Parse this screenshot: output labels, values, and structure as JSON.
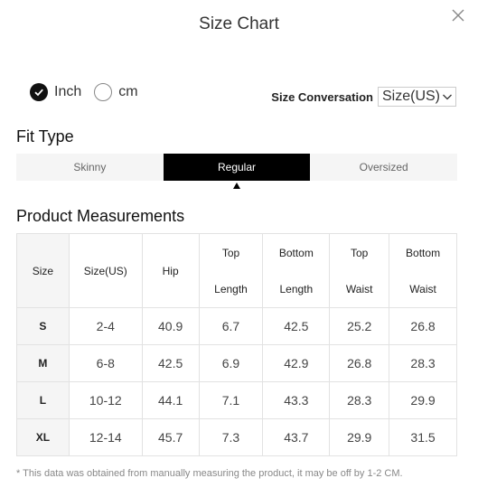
{
  "dialog": {
    "title": "Size Chart"
  },
  "units": {
    "options": [
      {
        "label": "Inch",
        "selected": true
      },
      {
        "label": "cm",
        "selected": false
      }
    ]
  },
  "conversion": {
    "label": "Size Conversation",
    "selected": "Size(US)"
  },
  "fit_type": {
    "title": "Fit Type",
    "tabs": [
      {
        "label": "Skinny",
        "active": false
      },
      {
        "label": "Regular",
        "active": true
      },
      {
        "label": "Oversized",
        "active": false
      }
    ]
  },
  "measurements": {
    "title": "Product Measurements",
    "headers": [
      {
        "line1": "Size",
        "line2": ""
      },
      {
        "line1": "Size(US)",
        "line2": ""
      },
      {
        "line1": "Hip",
        "line2": ""
      },
      {
        "line1": "Top",
        "line2": "Length"
      },
      {
        "line1": "Bottom",
        "line2": "Length"
      },
      {
        "line1": "Top",
        "line2": "Waist"
      },
      {
        "line1": "Bottom",
        "line2": "Waist"
      }
    ],
    "rows": [
      [
        "S",
        "2-4",
        "40.9",
        "6.7",
        "42.5",
        "25.2",
        "26.8"
      ],
      [
        "M",
        "6-8",
        "42.5",
        "6.9",
        "42.9",
        "26.8",
        "28.3"
      ],
      [
        "L",
        "10-12",
        "44.1",
        "7.1",
        "43.3",
        "28.3",
        "29.9"
      ],
      [
        "XL",
        "12-14",
        "45.7",
        "7.3",
        "43.7",
        "29.9",
        "31.5"
      ]
    ]
  },
  "note": "* This data was obtained from manually measuring the product, it may be off by 1-2 CM.",
  "colors": {
    "active_tab": "#000000",
    "tab_bg": "#f5f5f5",
    "size_column_bg": "#f5f5f5",
    "border": "#e2e2e2"
  },
  "icons": {
    "close": "close-icon",
    "check": "check-icon",
    "dropdown": "chevron-down-icon",
    "caret": "caret-up-icon"
  }
}
